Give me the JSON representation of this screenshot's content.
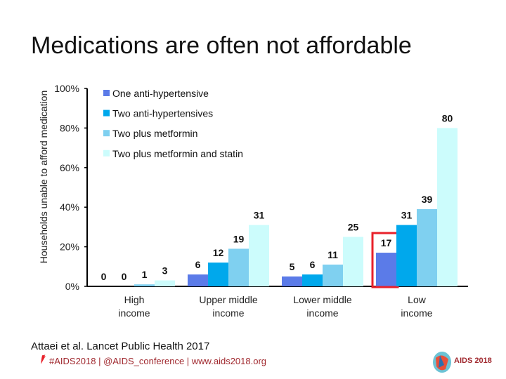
{
  "title": "Medications are often not affordable",
  "chart_data": {
    "type": "bar",
    "ylabel": "Households unable to afford medication",
    "ylim": [
      0,
      100
    ],
    "yticks": [
      "0%",
      "20%",
      "40%",
      "60%",
      "80%",
      "100%"
    ],
    "categories": [
      "High income",
      "Upper middle income",
      "Lower middle income",
      "Low income"
    ],
    "legend_position": "top-left",
    "grid": false,
    "series": [
      {
        "name": "One anti-hypertensive",
        "color": "#5b7be8",
        "values": [
          0,
          6,
          5,
          17
        ]
      },
      {
        "name": "Two anti-hypertensives",
        "color": "#00a8ec",
        "values": [
          0,
          12,
          6,
          31
        ]
      },
      {
        "name": "Two plus metformin",
        "color": "#7fd0f0",
        "values": [
          1,
          19,
          11,
          39
        ]
      },
      {
        "name": "Two plus metformin and statin",
        "color": "#ccfcfc",
        "values": [
          3,
          31,
          25,
          80
        ]
      }
    ],
    "highlight": {
      "category": "Low income",
      "series": "One anti-hypertensive",
      "color": "#e8212a"
    }
  },
  "citation": "Attaei et al. Lancet Public Health 2017",
  "footer": "#AIDS2018 | @AIDS_conference | www.aids2018.org",
  "logo_text": "AIDS 2018"
}
